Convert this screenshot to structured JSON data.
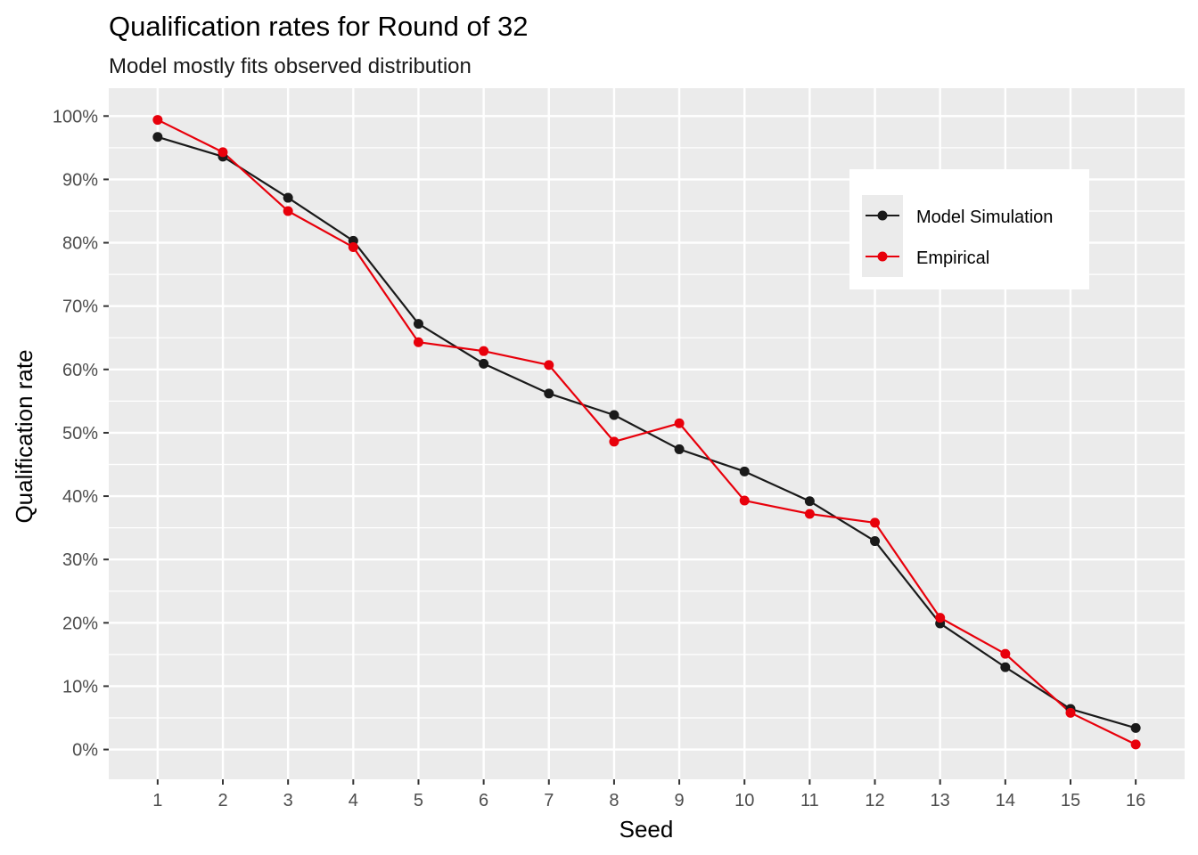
{
  "chart_data": {
    "type": "line",
    "title": "Qualification rates for Round of 32",
    "subtitle": "Model mostly fits observed distribution",
    "xlabel": "Seed",
    "ylabel": "Qualification rate",
    "x": [
      1,
      2,
      3,
      4,
      5,
      6,
      7,
      8,
      9,
      10,
      11,
      12,
      13,
      14,
      15,
      16
    ],
    "x_ticks": [
      "1",
      "2",
      "3",
      "4",
      "5",
      "6",
      "7",
      "8",
      "9",
      "10",
      "11",
      "12",
      "13",
      "14",
      "15",
      "16"
    ],
    "y_ticks": [
      "0%",
      "10%",
      "20%",
      "30%",
      "40%",
      "50%",
      "60%",
      "70%",
      "80%",
      "90%",
      "100%"
    ],
    "y_tick_values": [
      0,
      10,
      20,
      30,
      40,
      50,
      60,
      70,
      80,
      90,
      100
    ],
    "xlim": [
      0.25,
      16.75
    ],
    "ylim": [
      -4.7,
      104.4
    ],
    "grid": true,
    "legend_position": "top-right",
    "series": [
      {
        "name": "Model Simulation",
        "color": "#1a1a1a",
        "values": [
          96.7,
          93.6,
          87.1,
          80.3,
          67.2,
          60.9,
          56.2,
          52.8,
          47.4,
          43.9,
          39.2,
          32.9,
          19.9,
          13.0,
          6.4,
          3.4
        ]
      },
      {
        "name": "Empirical",
        "color": "#e8000b",
        "values": [
          99.4,
          94.3,
          85.0,
          79.3,
          64.3,
          62.9,
          60.7,
          48.6,
          51.5,
          39.3,
          37.2,
          35.8,
          20.8,
          15.1,
          5.8,
          0.8
        ]
      }
    ]
  }
}
